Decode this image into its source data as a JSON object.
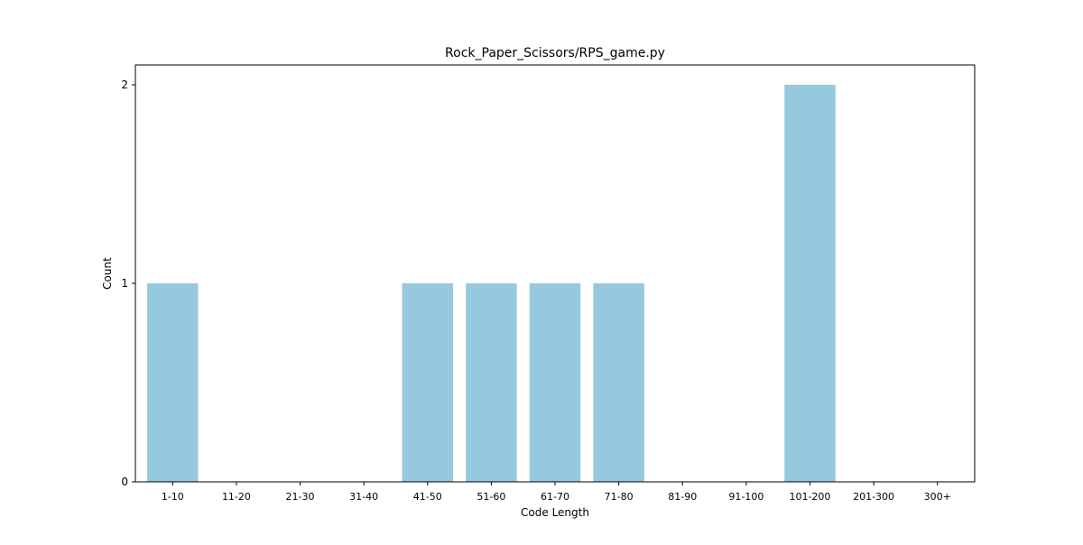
{
  "chart_data": {
    "type": "bar",
    "title": "Rock_Paper_Scissors/RPS_game.py",
    "xlabel": "Code Length",
    "ylabel": "Count",
    "categories": [
      "1-10",
      "11-20",
      "21-30",
      "31-40",
      "41-50",
      "51-60",
      "61-70",
      "71-80",
      "81-90",
      "91-100",
      "101-200",
      "201-300",
      "300+"
    ],
    "values": [
      1,
      0,
      0,
      0,
      1,
      1,
      1,
      1,
      0,
      0,
      2,
      0,
      0
    ],
    "ylim": [
      0,
      2.1
    ],
    "yticks": [
      0,
      1,
      2
    ],
    "grid": false,
    "legend": false,
    "bar_color": "#96c9dd"
  }
}
